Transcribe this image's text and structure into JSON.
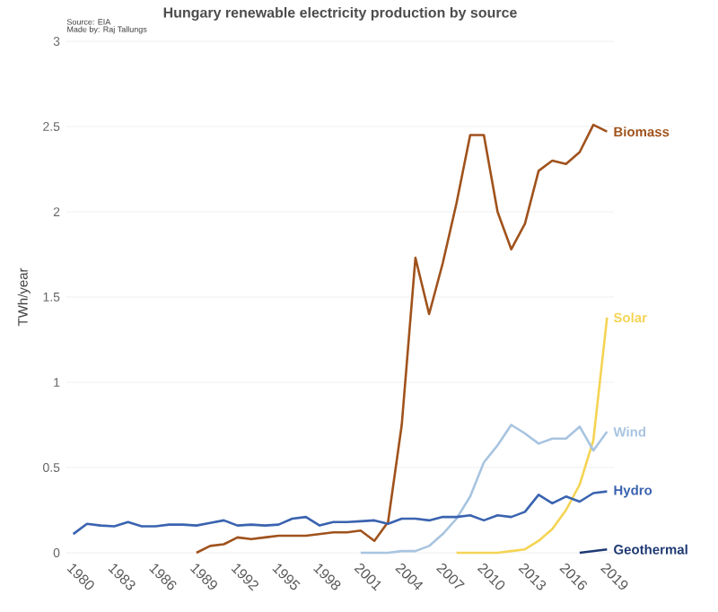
{
  "chart_data": {
    "type": "line",
    "title": "Hungary renewable electricity production by source",
    "ylabel": "TWh/year",
    "annotations": [
      "Source: EIA",
      "Made by: Raj Tallungs"
    ],
    "xlim": [
      1979.5,
      2019.5
    ],
    "xticks": [
      1980,
      1983,
      1986,
      1989,
      1992,
      1995,
      1998,
      2001,
      2004,
      2007,
      2010,
      2013,
      2016,
      2019
    ],
    "ylim": [
      0,
      3
    ],
    "yticks": [
      0,
      0.5,
      1,
      1.5,
      2,
      2.5,
      3
    ],
    "grid": "y",
    "series": [
      {
        "name": "Biomass",
        "color": "#a0521c",
        "x": [
          1989,
          1990,
          1991,
          1992,
          1993,
          1994,
          1995,
          1996,
          1997,
          1998,
          1999,
          2000,
          2001,
          2002,
          2003,
          2004,
          2005,
          2006,
          2007,
          2008,
          2009,
          2010,
          2011,
          2012,
          2013,
          2014,
          2015,
          2016,
          2017,
          2018,
          2019
        ],
        "values": [
          0.0,
          0.04,
          0.05,
          0.09,
          0.08,
          0.09,
          0.1,
          0.1,
          0.1,
          0.11,
          0.12,
          0.12,
          0.13,
          0.07,
          0.18,
          0.75,
          1.73,
          1.4,
          1.7,
          2.05,
          2.45,
          2.45,
          2.0,
          1.78,
          1.93,
          2.24,
          2.3,
          2.28,
          2.35,
          2.51,
          2.47
        ]
      },
      {
        "name": "Solar",
        "color": "#f5d454",
        "x": [
          2008,
          2009,
          2010,
          2011,
          2012,
          2013,
          2014,
          2015,
          2016,
          2017,
          2018,
          2019
        ],
        "values": [
          0.0,
          0.0,
          0.0,
          0.0,
          0.01,
          0.02,
          0.07,
          0.14,
          0.25,
          0.4,
          0.66,
          1.38
        ]
      },
      {
        "name": "Wind",
        "color": "#a8c4e0",
        "x": [
          2001,
          2002,
          2003,
          2004,
          2005,
          2006,
          2007,
          2008,
          2009,
          2010,
          2011,
          2012,
          2013,
          2014,
          2015,
          2016,
          2017,
          2018,
          2019
        ],
        "values": [
          0.0,
          0.0,
          0.0,
          0.01,
          0.01,
          0.04,
          0.11,
          0.2,
          0.33,
          0.53,
          0.63,
          0.75,
          0.7,
          0.64,
          0.67,
          0.67,
          0.74,
          0.6,
          0.71
        ]
      },
      {
        "name": "Hydro",
        "color": "#3a63b0",
        "x": [
          1980,
          1981,
          1982,
          1983,
          1984,
          1985,
          1986,
          1987,
          1988,
          1989,
          1990,
          1991,
          1992,
          1993,
          1994,
          1995,
          1996,
          1997,
          1998,
          1999,
          2000,
          2001,
          2002,
          2003,
          2004,
          2005,
          2006,
          2007,
          2008,
          2009,
          2010,
          2011,
          2012,
          2013,
          2014,
          2015,
          2016,
          2017,
          2018,
          2019
        ],
        "values": [
          0.11,
          0.17,
          0.16,
          0.155,
          0.18,
          0.155,
          0.155,
          0.165,
          0.165,
          0.16,
          0.175,
          0.19,
          0.16,
          0.165,
          0.16,
          0.165,
          0.2,
          0.21,
          0.16,
          0.18,
          0.18,
          0.185,
          0.19,
          0.17,
          0.2,
          0.2,
          0.19,
          0.21,
          0.21,
          0.22,
          0.19,
          0.22,
          0.21,
          0.24,
          0.34,
          0.29,
          0.33,
          0.3,
          0.35,
          0.36
        ]
      },
      {
        "name": "Geothermal",
        "color": "#1f3a73",
        "x": [
          2017,
          2018,
          2019
        ],
        "values": [
          0.0,
          0.01,
          0.02
        ]
      }
    ]
  }
}
